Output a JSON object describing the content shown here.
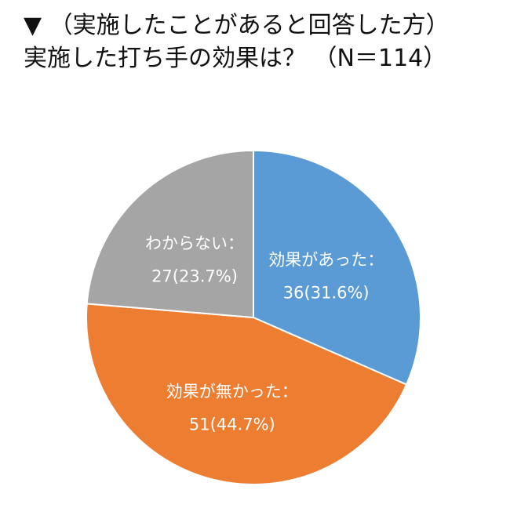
{
  "title": {
    "line1": "▼ （実施したことがあると回答した方）",
    "line2": "実施した打ち手の効果は？ （N＝114）"
  },
  "colors": {
    "effective": "#5b9bd5",
    "not_effective": "#ed7d31",
    "unknown": "#a5a5a5",
    "border": "#ffffff"
  },
  "chart_data": {
    "type": "pie",
    "title": "▼ （実施したことがあると回答した方） 実施した打ち手の効果は？ （N＝114）",
    "total": 114,
    "start": "12 o'clock",
    "direction": "clockwise",
    "slices": [
      {
        "label": "効果があった：",
        "value": 36,
        "percent": 31.6,
        "display": "36(31.6%)",
        "color": "#5b9bd5"
      },
      {
        "label": "効果が無かった：",
        "value": 51,
        "percent": 44.7,
        "display": "51(44.7%)",
        "color": "#ed7d31"
      },
      {
        "label": "わからない：",
        "value": 27,
        "percent": 23.7,
        "display": "27(23.7%)",
        "color": "#a5a5a5"
      }
    ],
    "legend": "none"
  }
}
